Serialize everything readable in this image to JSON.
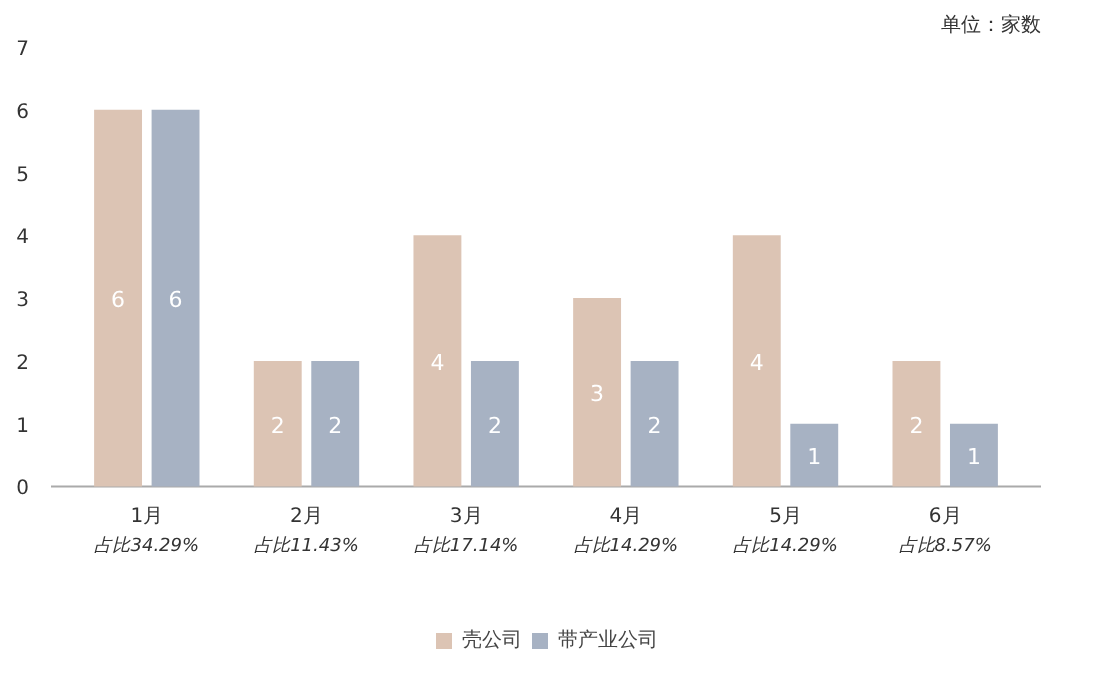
{
  "chart_data": {
    "type": "bar",
    "categories": [
      "1月",
      "2月",
      "3月",
      "4月",
      "5月",
      "6月"
    ],
    "series": [
      {
        "name": "壳公司",
        "color": "#dcc4b4",
        "values": [
          6,
          2,
          4,
          3,
          4,
          2
        ]
      },
      {
        "name": "带产业公司",
        "color": "#a7b2c3",
        "values": [
          6,
          2,
          2,
          2,
          1,
          1
        ]
      }
    ],
    "ylim": [
      0,
      7
    ],
    "yticks": [
      0,
      1,
      2,
      3,
      4,
      5,
      6,
      7
    ],
    "grid": false,
    "legend": "bottom",
    "data_labels": true,
    "annotations": [
      "单位：家数",
      "占比34.29%",
      "占比11.43%",
      "占比17.14%",
      "占比14.29%",
      "占比14.29%",
      "占比8.57%"
    ]
  }
}
